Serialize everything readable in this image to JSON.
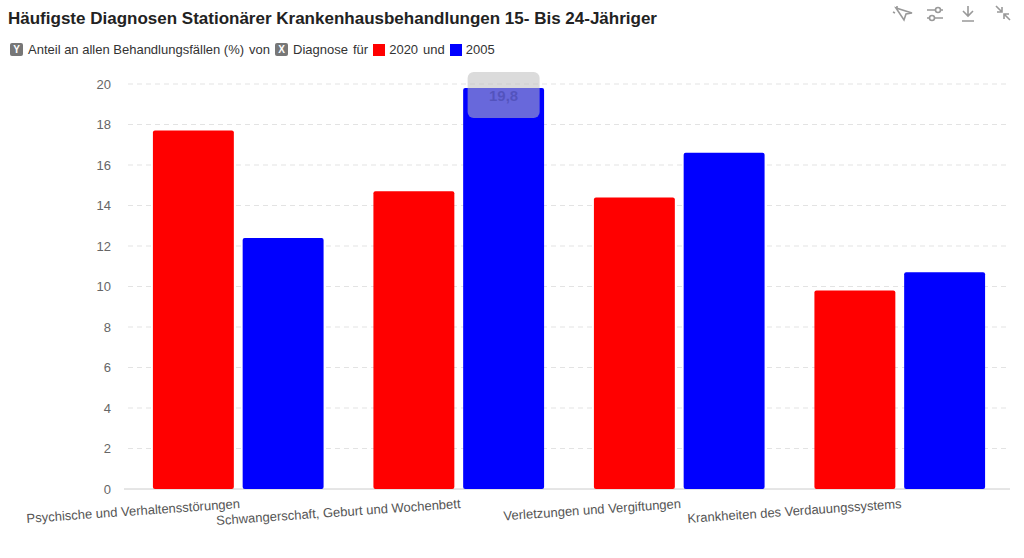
{
  "chart_data": {
    "type": "bar",
    "title": "Häufigste Diagnosen Stationärer Krankenhausbehandlungen 15- Bis 24-Jähriger",
    "ylabel": "Anteil an allen Behandlungsfällen (%)",
    "xlabel": "Diagnose",
    "legend_words": {
      "y_badge": "Y",
      "of": "von",
      "x_badge": "X",
      "for": "für",
      "and": "und"
    },
    "categories": [
      "Psychische und Verhaltensstörungen",
      "Schwangerschaft, Geburt und Wochenbett",
      "Verletzungen und Vergiftungen",
      "Krankheiten des Verdauungssystems"
    ],
    "series": [
      {
        "name": "2020",
        "color": "#ff0000",
        "values": [
          17.7,
          14.7,
          14.4,
          9.8
        ]
      },
      {
        "name": "2005",
        "color": "#0000ff",
        "values": [
          12.4,
          19.8,
          16.6,
          10.7
        ],
        "value_labels": [
          null,
          "19,8",
          null,
          null
        ]
      }
    ],
    "ylim": [
      0,
      20
    ],
    "yticks": [
      0,
      2,
      4,
      6,
      8,
      10,
      12,
      14,
      16,
      18,
      20
    ],
    "grid": true,
    "legend": "top-left"
  }
}
